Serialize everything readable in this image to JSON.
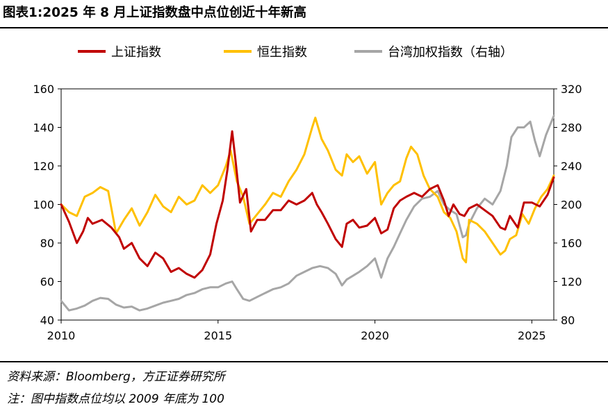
{
  "title": "图表1:2025 年 8 月上证指数盘中点位创近十年新高",
  "source": "资料来源：Bloomberg，方正证券研究所",
  "note": "注：图中指数点位均以 2009 年底为 100",
  "colors": {
    "sse": "#c00000",
    "hsi": "#ffc000",
    "taiex": "#a6a6a6"
  },
  "chart_data": {
    "type": "line",
    "title": "",
    "xlabel": "",
    "ylabel": "",
    "xlim": [
      2010,
      2025.7
    ],
    "ylim": [
      40,
      160
    ],
    "y2lim": [
      80,
      320
    ],
    "x_ticks": [
      2010,
      2015,
      2020,
      2025
    ],
    "y_ticks": [
      40,
      60,
      80,
      100,
      120,
      140,
      160
    ],
    "y2_ticks": [
      80,
      120,
      160,
      200,
      240,
      280,
      320
    ],
    "grid": false,
    "legend_placement": "top",
    "series": [
      {
        "name": "上证指数",
        "axis": "left",
        "color": "#c00000",
        "points": [
          [
            2010.0,
            100
          ],
          [
            2010.25,
            91
          ],
          [
            2010.5,
            80
          ],
          [
            2010.7,
            86
          ],
          [
            2010.85,
            93
          ],
          [
            2011.0,
            90
          ],
          [
            2011.3,
            92
          ],
          [
            2011.6,
            88
          ],
          [
            2011.85,
            83
          ],
          [
            2012.0,
            77
          ],
          [
            2012.25,
            80
          ],
          [
            2012.5,
            72
          ],
          [
            2012.75,
            68
          ],
          [
            2013.0,
            75
          ],
          [
            2013.25,
            72
          ],
          [
            2013.5,
            65
          ],
          [
            2013.75,
            67
          ],
          [
            2014.0,
            64
          ],
          [
            2014.25,
            62
          ],
          [
            2014.5,
            66
          ],
          [
            2014.75,
            74
          ],
          [
            2014.95,
            90
          ],
          [
            2015.15,
            102
          ],
          [
            2015.3,
            118
          ],
          [
            2015.45,
            138
          ],
          [
            2015.55,
            124
          ],
          [
            2015.7,
            101
          ],
          [
            2015.9,
            108
          ],
          [
            2016.05,
            86
          ],
          [
            2016.25,
            92
          ],
          [
            2016.5,
            92
          ],
          [
            2016.75,
            97
          ],
          [
            2017.0,
            97
          ],
          [
            2017.25,
            102
          ],
          [
            2017.5,
            100
          ],
          [
            2017.75,
            102
          ],
          [
            2018.0,
            106
          ],
          [
            2018.15,
            100
          ],
          [
            2018.3,
            96
          ],
          [
            2018.5,
            90
          ],
          [
            2018.75,
            82
          ],
          [
            2018.95,
            78
          ],
          [
            2019.1,
            90
          ],
          [
            2019.3,
            92
          ],
          [
            2019.5,
            88
          ],
          [
            2019.75,
            89
          ],
          [
            2020.0,
            93
          ],
          [
            2020.2,
            85
          ],
          [
            2020.4,
            87
          ],
          [
            2020.6,
            98
          ],
          [
            2020.8,
            102
          ],
          [
            2021.0,
            104
          ],
          [
            2021.25,
            106
          ],
          [
            2021.5,
            104
          ],
          [
            2021.75,
            108
          ],
          [
            2022.0,
            110
          ],
          [
            2022.2,
            102
          ],
          [
            2022.35,
            94
          ],
          [
            2022.5,
            100
          ],
          [
            2022.7,
            95
          ],
          [
            2022.85,
            94
          ],
          [
            2023.0,
            98
          ],
          [
            2023.25,
            100
          ],
          [
            2023.5,
            97
          ],
          [
            2023.75,
            94
          ],
          [
            2024.0,
            88
          ],
          [
            2024.15,
            87
          ],
          [
            2024.3,
            94
          ],
          [
            2024.55,
            88
          ],
          [
            2024.75,
            101
          ],
          [
            2025.0,
            101
          ],
          [
            2025.25,
            99
          ],
          [
            2025.5,
            105
          ],
          [
            2025.7,
            114
          ]
        ]
      },
      {
        "name": "恒生指数",
        "axis": "left",
        "color": "#ffc000",
        "points": [
          [
            2010.0,
            100
          ],
          [
            2010.25,
            96
          ],
          [
            2010.5,
            94
          ],
          [
            2010.75,
            104
          ],
          [
            2011.0,
            106
          ],
          [
            2011.25,
            109
          ],
          [
            2011.5,
            107
          ],
          [
            2011.75,
            85
          ],
          [
            2012.0,
            92
          ],
          [
            2012.25,
            98
          ],
          [
            2012.5,
            89
          ],
          [
            2012.75,
            96
          ],
          [
            2013.0,
            105
          ],
          [
            2013.25,
            99
          ],
          [
            2013.5,
            96
          ],
          [
            2013.75,
            104
          ],
          [
            2014.0,
            100
          ],
          [
            2014.25,
            102
          ],
          [
            2014.5,
            110
          ],
          [
            2014.75,
            106
          ],
          [
            2015.0,
            110
          ],
          [
            2015.25,
            120
          ],
          [
            2015.4,
            128
          ],
          [
            2015.6,
            112
          ],
          [
            2015.8,
            104
          ],
          [
            2016.0,
            90
          ],
          [
            2016.25,
            95
          ],
          [
            2016.5,
            100
          ],
          [
            2016.75,
            106
          ],
          [
            2017.0,
            104
          ],
          [
            2017.25,
            112
          ],
          [
            2017.5,
            118
          ],
          [
            2017.75,
            126
          ],
          [
            2018.0,
            140
          ],
          [
            2018.1,
            145
          ],
          [
            2018.3,
            134
          ],
          [
            2018.5,
            128
          ],
          [
            2018.75,
            118
          ],
          [
            2018.95,
            115
          ],
          [
            2019.1,
            126
          ],
          [
            2019.3,
            122
          ],
          [
            2019.5,
            125
          ],
          [
            2019.75,
            116
          ],
          [
            2020.0,
            122
          ],
          [
            2020.2,
            100
          ],
          [
            2020.4,
            106
          ],
          [
            2020.6,
            110
          ],
          [
            2020.8,
            112
          ],
          [
            2021.0,
            124
          ],
          [
            2021.15,
            130
          ],
          [
            2021.35,
            126
          ],
          [
            2021.55,
            115
          ],
          [
            2021.75,
            108
          ],
          [
            2022.0,
            104
          ],
          [
            2022.2,
            96
          ],
          [
            2022.4,
            93
          ],
          [
            2022.6,
            86
          ],
          [
            2022.8,
            72
          ],
          [
            2022.9,
            70
          ],
          [
            2023.0,
            92
          ],
          [
            2023.25,
            90
          ],
          [
            2023.5,
            86
          ],
          [
            2023.75,
            80
          ],
          [
            2024.0,
            74
          ],
          [
            2024.15,
            76
          ],
          [
            2024.3,
            82
          ],
          [
            2024.5,
            84
          ],
          [
            2024.7,
            95
          ],
          [
            2024.9,
            90
          ],
          [
            2025.1,
            98
          ],
          [
            2025.3,
            104
          ],
          [
            2025.5,
            108
          ],
          [
            2025.7,
            115
          ]
        ]
      },
      {
        "name": "台湾加权指数（右轴）",
        "axis": "right",
        "color": "#a6a6a6",
        "points": [
          [
            2010.0,
            100
          ],
          [
            2010.25,
            90
          ],
          [
            2010.5,
            92
          ],
          [
            2010.75,
            95
          ],
          [
            2011.0,
            100
          ],
          [
            2011.25,
            103
          ],
          [
            2011.5,
            102
          ],
          [
            2011.75,
            96
          ],
          [
            2012.0,
            93
          ],
          [
            2012.25,
            94
          ],
          [
            2012.5,
            90
          ],
          [
            2012.75,
            92
          ],
          [
            2013.0,
            95
          ],
          [
            2013.25,
            98
          ],
          [
            2013.5,
            100
          ],
          [
            2013.75,
            102
          ],
          [
            2014.0,
            106
          ],
          [
            2014.25,
            108
          ],
          [
            2014.5,
            112
          ],
          [
            2014.75,
            114
          ],
          [
            2015.0,
            114
          ],
          [
            2015.25,
            118
          ],
          [
            2015.45,
            120
          ],
          [
            2015.6,
            112
          ],
          [
            2015.8,
            102
          ],
          [
            2016.0,
            100
          ],
          [
            2016.25,
            104
          ],
          [
            2016.5,
            108
          ],
          [
            2016.75,
            112
          ],
          [
            2017.0,
            114
          ],
          [
            2017.25,
            118
          ],
          [
            2017.5,
            126
          ],
          [
            2017.75,
            130
          ],
          [
            2018.0,
            134
          ],
          [
            2018.25,
            136
          ],
          [
            2018.5,
            134
          ],
          [
            2018.75,
            128
          ],
          [
            2018.95,
            116
          ],
          [
            2019.1,
            122
          ],
          [
            2019.3,
            126
          ],
          [
            2019.5,
            130
          ],
          [
            2019.75,
            136
          ],
          [
            2020.0,
            144
          ],
          [
            2020.2,
            124
          ],
          [
            2020.4,
            144
          ],
          [
            2020.6,
            156
          ],
          [
            2020.8,
            170
          ],
          [
            2021.0,
            184
          ],
          [
            2021.25,
            198
          ],
          [
            2021.5,
            206
          ],
          [
            2021.75,
            208
          ],
          [
            2022.0,
            214
          ],
          [
            2022.2,
            200
          ],
          [
            2022.4,
            194
          ],
          [
            2022.6,
            190
          ],
          [
            2022.8,
            166
          ],
          [
            2022.9,
            168
          ],
          [
            2023.0,
            180
          ],
          [
            2023.25,
            196
          ],
          [
            2023.5,
            206
          ],
          [
            2023.75,
            200
          ],
          [
            2024.0,
            214
          ],
          [
            2024.2,
            240
          ],
          [
            2024.35,
            270
          ],
          [
            2024.55,
            280
          ],
          [
            2024.75,
            280
          ],
          [
            2024.95,
            286
          ],
          [
            2025.1,
            266
          ],
          [
            2025.25,
            250
          ],
          [
            2025.45,
            272
          ],
          [
            2025.7,
            292
          ]
        ]
      }
    ]
  }
}
